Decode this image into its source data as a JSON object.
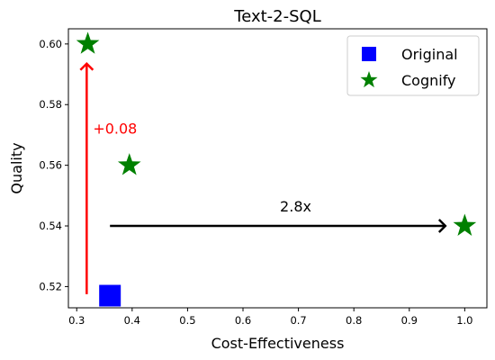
{
  "chart_data": {
    "type": "scatter",
    "title": "Text-2-SQL",
    "xlabel": "Cost-Effectiveness",
    "ylabel": "Quality",
    "xlim": [
      0.285,
      1.04
    ],
    "ylim": [
      0.513,
      0.605
    ],
    "xticks": [
      "0.3",
      "0.4",
      "0.5",
      "0.6",
      "0.7",
      "0.8",
      "0.9",
      "1.0"
    ],
    "yticks": [
      "0.52",
      "0.54",
      "0.56",
      "0.58",
      "0.60"
    ],
    "grid": false,
    "legend_position": "top-right",
    "series": [
      {
        "name": "Original",
        "marker": "square",
        "color": "#0000ff",
        "points": [
          {
            "x": 0.36,
            "y": 0.517
          }
        ]
      },
      {
        "name": "Cognify",
        "marker": "star",
        "color": "#008000",
        "points": [
          {
            "x": 0.32,
            "y": 0.6
          },
          {
            "x": 0.395,
            "y": 0.56
          },
          {
            "x": 1.0,
            "y": 0.54
          }
        ]
      }
    ],
    "annotations": [
      {
        "text": "+0.08",
        "color": "#ff0000"
      },
      {
        "text": "2.8x",
        "color": "#000000"
      }
    ]
  }
}
